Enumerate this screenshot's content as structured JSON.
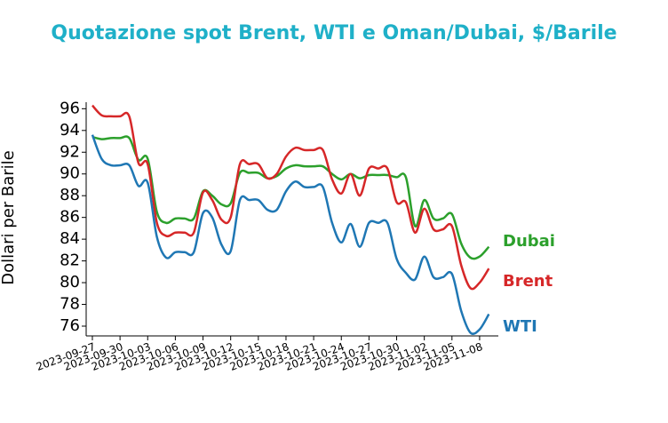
{
  "chart_data": {
    "type": "line",
    "title": "Quotazione spot Brent, WTI e Oman/Dubai, $/Barile",
    "y_label": "Dollari per Barile",
    "x": [
      "2023-09-27",
      "2023-09-28",
      "2023-09-29",
      "2023-09-30",
      "2023-10-01",
      "2023-10-02",
      "2023-10-03",
      "2023-10-04",
      "2023-10-05",
      "2023-10-06",
      "2023-10-07",
      "2023-10-08",
      "2023-10-09",
      "2023-10-10",
      "2023-10-11",
      "2023-10-12",
      "2023-10-13",
      "2023-10-14",
      "2023-10-15",
      "2023-10-16",
      "2023-10-17",
      "2023-10-18",
      "2023-10-19",
      "2023-10-20",
      "2023-10-21",
      "2023-10-22",
      "2023-10-23",
      "2023-10-24",
      "2023-10-25",
      "2023-10-26",
      "2023-10-27",
      "2023-10-28",
      "2023-10-29",
      "2023-10-30",
      "2023-10-31",
      "2023-11-01",
      "2023-11-02",
      "2023-11-03",
      "2023-11-04",
      "2023-11-05",
      "2023-11-06",
      "2023-11-07",
      "2023-11-08",
      "2023-11-09"
    ],
    "series": [
      {
        "name": "Dubai",
        "color": "#2ca02c",
        "values": [
          93.4,
          93.2,
          93.3,
          93.3,
          93.3,
          91.3,
          91.4,
          86.5,
          85.5,
          85.9,
          85.9,
          85.9,
          88.4,
          88.0,
          87.2,
          87.3,
          90.1,
          90.1,
          90.1,
          89.6,
          89.8,
          90.5,
          90.8,
          90.7,
          90.7,
          90.7,
          90.0,
          89.5,
          90.0,
          89.6,
          89.9,
          89.9,
          89.9,
          89.7,
          89.7,
          85.2,
          87.6,
          85.9,
          85.9,
          86.3,
          83.6,
          82.3,
          82.4,
          83.3
        ]
      },
      {
        "name": "Brent",
        "color": "#d62728",
        "values": [
          96.3,
          95.4,
          95.3,
          95.3,
          95.3,
          91.0,
          90.9,
          85.5,
          84.3,
          84.6,
          84.6,
          84.6,
          88.3,
          87.6,
          85.8,
          86.0,
          90.9,
          90.9,
          90.9,
          89.6,
          90.0,
          91.6,
          92.4,
          92.2,
          92.2,
          92.2,
          89.5,
          88.2,
          90.0,
          88.0,
          90.5,
          90.5,
          90.5,
          87.4,
          87.4,
          84.6,
          86.8,
          84.9,
          84.9,
          85.2,
          81.6,
          79.5,
          80.0,
          81.3
        ]
      },
      {
        "name": "WTI",
        "color": "#1f77b4",
        "values": [
          93.6,
          91.4,
          90.8,
          90.8,
          90.8,
          88.9,
          89.2,
          84.2,
          82.3,
          82.8,
          82.8,
          82.8,
          86.4,
          86.0,
          83.5,
          82.9,
          87.6,
          87.6,
          87.6,
          86.7,
          86.7,
          88.4,
          89.3,
          88.8,
          88.8,
          88.8,
          85.5,
          83.7,
          85.4,
          83.3,
          85.5,
          85.5,
          85.5,
          82.2,
          80.9,
          80.3,
          82.4,
          80.5,
          80.5,
          80.8,
          77.4,
          75.4,
          75.7,
          77.1
        ]
      }
    ],
    "xlim": [
      "2023-09-26",
      "2023-11-10"
    ],
    "xticks": [
      "2023-09-27",
      "2023-09-30",
      "2023-10-03",
      "2023-10-06",
      "2023-10-09",
      "2023-10-12",
      "2023-10-15",
      "2023-10-18",
      "2023-10-21",
      "2023-10-24",
      "2023-10-27",
      "2023-10-30",
      "2023-11-02",
      "2023-11-05",
      "2023-11-08"
    ],
    "ylim": [
      75.1,
      96.6
    ],
    "yticks": [
      76,
      78,
      80,
      82,
      84,
      86,
      88,
      90,
      92,
      94,
      96
    ]
  }
}
